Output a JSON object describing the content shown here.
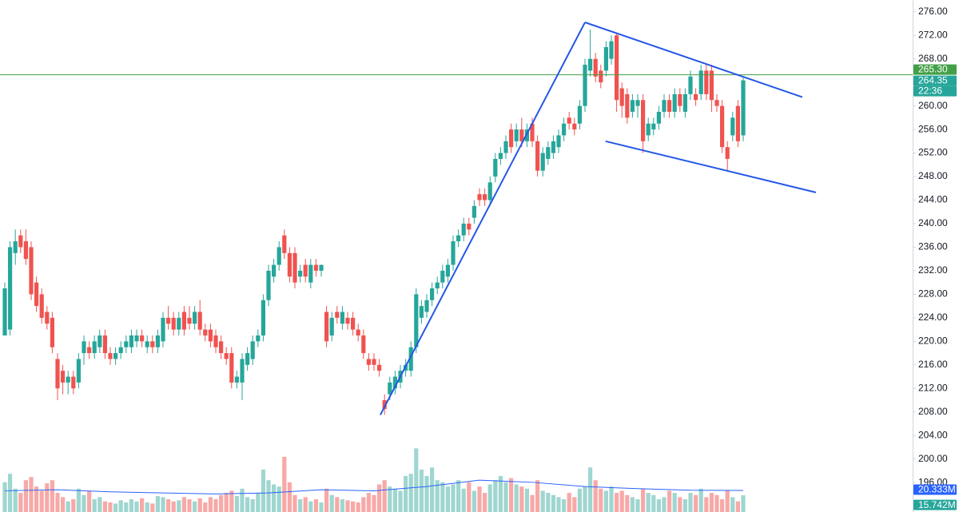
{
  "chart_data": {
    "type": "candlestick",
    "colors": {
      "up": "#26a69a",
      "down": "#ef5350",
      "up_volume": "#9fd6d0",
      "down_volume": "#f7a9a7",
      "trendline": "#2457e6",
      "volume_ma": "#2962ff"
    },
    "candles": [
      [
        221,
        230,
        221,
        229
      ],
      [
        222,
        237,
        221,
        236
      ],
      [
        235,
        239,
        233,
        237
      ],
      [
        238,
        239,
        235,
        236
      ],
      [
        237,
        239,
        233,
        234
      ],
      [
        236,
        237,
        227,
        228
      ],
      [
        230,
        231,
        225,
        226
      ],
      [
        228,
        229,
        223,
        224
      ],
      [
        225,
        226,
        222,
        223
      ],
      [
        224,
        225,
        218,
        219
      ],
      [
        217,
        218,
        210,
        212
      ],
      [
        215,
        216,
        211,
        213
      ],
      [
        213,
        215,
        211,
        214
      ],
      [
        214,
        215,
        211,
        212
      ],
      [
        213,
        218,
        212,
        217
      ],
      [
        218,
        221,
        216,
        220
      ],
      [
        219,
        220,
        217,
        218
      ],
      [
        218,
        221,
        217,
        220
      ],
      [
        219,
        222,
        218,
        221
      ],
      [
        221,
        222,
        217,
        218
      ],
      [
        218,
        219,
        216,
        217
      ],
      [
        217,
        219,
        216,
        218
      ],
      [
        218,
        220,
        217,
        219
      ],
      [
        219,
        221,
        218,
        220
      ],
      [
        219,
        222,
        218,
        221
      ],
      [
        220,
        222,
        219,
        221
      ],
      [
        221,
        222,
        219,
        220
      ],
      [
        219,
        221,
        218,
        220
      ],
      [
        220,
        221,
        218,
        219
      ],
      [
        219,
        222,
        218,
        221
      ],
      [
        220,
        225,
        219,
        224
      ],
      [
        224,
        226,
        222,
        223
      ],
      [
        224,
        225,
        221,
        222
      ],
      [
        222,
        225,
        221,
        224
      ],
      [
        225,
        226,
        221,
        222
      ],
      [
        224,
        226,
        222,
        223
      ],
      [
        223,
        226,
        222,
        225
      ],
      [
        225,
        227,
        221,
        222
      ],
      [
        222,
        223,
        220,
        221
      ],
      [
        222,
        223,
        219,
        220
      ],
      [
        221,
        222,
        218,
        219
      ],
      [
        220,
        221,
        217,
        218
      ],
      [
        218,
        219,
        216,
        217
      ],
      [
        218,
        219,
        212,
        213
      ],
      [
        213,
        215,
        212,
        214
      ],
      [
        213,
        218,
        210,
        217
      ],
      [
        216,
        219,
        215,
        218
      ],
      [
        217,
        221,
        216,
        220
      ],
      [
        220,
        222,
        219,
        221
      ],
      [
        221,
        228,
        220,
        227
      ],
      [
        227,
        233,
        226,
        232
      ],
      [
        231,
        234,
        230,
        233
      ],
      [
        233,
        237,
        232,
        236
      ],
      [
        238,
        239,
        234,
        235
      ],
      [
        235,
        236,
        230,
        231
      ],
      [
        235,
        236,
        229,
        230
      ],
      [
        231,
        233,
        230,
        232
      ],
      [
        233,
        234,
        230,
        231
      ],
      [
        230,
        234,
        229,
        233
      ],
      [
        233,
        234,
        231,
        232
      ],
      [
        232,
        233,
        231,
        233
      ],
      [
        225,
        226,
        219,
        220
      ],
      [
        221,
        225,
        220,
        224
      ],
      [
        225,
        226,
        223,
        224
      ],
      [
        223,
        226,
        222,
        225
      ],
      [
        224,
        225,
        222,
        223
      ],
      [
        224,
        225,
        221,
        222
      ],
      [
        222,
        223,
        220,
        221
      ],
      [
        221,
        222,
        217,
        218
      ],
      [
        217,
        218,
        215,
        216
      ],
      [
        217,
        218,
        215,
        216
      ],
      [
        216,
        217,
        214,
        215
      ],
      [
        210,
        211,
        207.5,
        208.5
      ],
      [
        211,
        214,
        210,
        213
      ],
      [
        212,
        215,
        211,
        214
      ],
      [
        213,
        216,
        212,
        215
      ],
      [
        215,
        217,
        214,
        216
      ],
      [
        215,
        220,
        214,
        219
      ],
      [
        219,
        229,
        218,
        228
      ],
      [
        224,
        227,
        223,
        226
      ],
      [
        225,
        228,
        224,
        227
      ],
      [
        227,
        230,
        226,
        229
      ],
      [
        229,
        231,
        228,
        230
      ],
      [
        230,
        233,
        229,
        232
      ],
      [
        231,
        234,
        230,
        233
      ],
      [
        233,
        238,
        232,
        237
      ],
      [
        237,
        239,
        236,
        238
      ],
      [
        238,
        241,
        237,
        240
      ],
      [
        240,
        241,
        238,
        239
      ],
      [
        241,
        244,
        240,
        243
      ],
      [
        245,
        246,
        243,
        244
      ],
      [
        245,
        246,
        243,
        244
      ],
      [
        244,
        248,
        243,
        247
      ],
      [
        248,
        252,
        247,
        251
      ],
      [
        251,
        253,
        250,
        252
      ],
      [
        252,
        255,
        251,
        254
      ],
      [
        256,
        257,
        252,
        253
      ],
      [
        254,
        257,
        253,
        256
      ],
      [
        256,
        258,
        253,
        254
      ],
      [
        254,
        257,
        253,
        256
      ],
      [
        257,
        258,
        253,
        254
      ],
      [
        254,
        255,
        248,
        249
      ],
      [
        249,
        253,
        248,
        252
      ],
      [
        251,
        254,
        250,
        253
      ],
      [
        252,
        255,
        251,
        254
      ],
      [
        253,
        256,
        252,
        255
      ],
      [
        255,
        258,
        254,
        257
      ],
      [
        258,
        259,
        256,
        257
      ],
      [
        257,
        258,
        255,
        256
      ],
      [
        257,
        261,
        256,
        260
      ],
      [
        260,
        268,
        259,
        267
      ],
      [
        266,
        273,
        265,
        268
      ],
      [
        268,
        269,
        264,
        265
      ],
      [
        266,
        267,
        263,
        264
      ],
      [
        266,
        271,
        265,
        270
      ],
      [
        268,
        272,
        267,
        271
      ],
      [
        272,
        272.5,
        259,
        261
      ],
      [
        263,
        264,
        258,
        260
      ],
      [
        262,
        263,
        257,
        258
      ],
      [
        259,
        262,
        258,
        261
      ],
      [
        260,
        262,
        258,
        261
      ],
      [
        261,
        262,
        252,
        254
      ],
      [
        255,
        258,
        254,
        257
      ],
      [
        256,
        258,
        255,
        257
      ],
      [
        257,
        260,
        256,
        259
      ],
      [
        259,
        262,
        258,
        261
      ],
      [
        261,
        262,
        258,
        259
      ],
      [
        259,
        263,
        258,
        262
      ],
      [
        262,
        263,
        259,
        260
      ],
      [
        259,
        263,
        258,
        262
      ],
      [
        262,
        266,
        261,
        265
      ],
      [
        262,
        263,
        260,
        261
      ],
      [
        262,
        267,
        261,
        266
      ],
      [
        266,
        267,
        261,
        262
      ],
      [
        266,
        267,
        259,
        261
      ],
      [
        261,
        262,
        259,
        260
      ],
      [
        260,
        261,
        252,
        253
      ],
      [
        253,
        254,
        249,
        251
      ],
      [
        255,
        259,
        254,
        258
      ],
      [
        260,
        261,
        253,
        254
      ],
      [
        255,
        264.8,
        254,
        264.35
      ]
    ],
    "volumes": [
      28,
      36,
      22,
      18,
      30,
      33,
      24,
      20,
      27,
      30,
      18,
      14,
      10,
      12,
      22,
      16,
      20,
      12,
      14,
      10,
      9,
      8,
      11,
      9,
      12,
      10,
      13,
      9,
      8,
      15,
      14,
      12,
      10,
      11,
      14,
      12,
      10,
      13,
      9,
      14,
      12,
      16,
      18,
      20,
      15,
      22,
      14,
      12,
      18,
      40,
      30,
      26,
      24,
      52,
      28,
      16,
      12,
      14,
      10,
      12,
      9,
      22,
      16,
      14,
      12,
      11,
      10,
      9,
      14,
      18,
      16,
      26,
      30,
      24,
      22,
      20,
      34,
      36,
      60,
      40,
      34,
      42,
      30,
      28,
      24,
      26,
      30,
      22,
      28,
      20,
      24,
      18,
      26,
      30,
      34,
      28,
      32,
      26,
      24,
      22,
      16,
      30,
      20,
      18,
      16,
      14,
      12,
      18,
      14,
      22,
      24,
      42,
      30,
      22,
      20,
      24,
      18,
      20,
      16,
      14,
      12,
      22,
      18,
      16,
      12,
      14,
      20,
      18,
      14,
      12,
      18,
      16,
      22,
      14,
      18,
      16,
      12,
      20,
      14,
      10,
      15.742
    ],
    "volume_ma": {
      "x": [
        0,
        10,
        20,
        30,
        40,
        50,
        60,
        70,
        80,
        90,
        100,
        110,
        120,
        130,
        140
      ],
      "values": [
        20,
        21,
        19,
        18,
        17,
        18,
        21,
        20,
        24,
        30,
        28,
        24,
        22,
        20.5,
        20.333
      ]
    },
    "volume_ma_label": "20.333M",
    "last_volume_label": "15.742M",
    "vlim": [
      0,
      64
    ],
    "ylim": [
      191,
      278
    ],
    "yticks": [
      {
        "value": 196,
        "label": "196.00"
      },
      {
        "value": 200,
        "label": "200.00"
      },
      {
        "value": 204,
        "label": "204.00"
      },
      {
        "value": 208,
        "label": "208.00"
      },
      {
        "value": 212,
        "label": "212.00"
      },
      {
        "value": 216,
        "label": "216.00"
      },
      {
        "value": 220,
        "label": "220.00"
      },
      {
        "value": 224,
        "label": "224.00"
      },
      {
        "value": 228,
        "label": "228.00"
      },
      {
        "value": 232,
        "label": "232.00"
      },
      {
        "value": 236,
        "label": "236.00"
      },
      {
        "value": 240,
        "label": "240.00"
      },
      {
        "value": 244,
        "label": "244.00"
      },
      {
        "value": 248,
        "label": "248.00"
      },
      {
        "value": 252,
        "label": "252.00"
      },
      {
        "value": 256,
        "label": "256.00"
      },
      {
        "value": 260,
        "label": "260.00"
      },
      {
        "value": 264,
        "label": "264.00"
      },
      {
        "value": 268,
        "label": "268.00"
      },
      {
        "value": 272,
        "label": "272.00"
      },
      {
        "value": 276,
        "label": "276.00"
      }
    ],
    "horizontal_line": {
      "value": 265.3,
      "label": "265.30",
      "color": "#43a047"
    },
    "last_price": {
      "value": 264.35,
      "label": "264.35"
    },
    "countdown": "22:36",
    "trendlines": [
      {
        "from": [
          71.2,
          207.5
        ],
        "to": [
          110.0,
          274.2
        ]
      },
      {
        "from": [
          110.0,
          274.2
        ],
        "to": [
          151.2,
          261.5
        ]
      },
      {
        "from": [
          113.9,
          254.0
        ],
        "to": [
          153.8,
          245.3
        ]
      }
    ]
  }
}
